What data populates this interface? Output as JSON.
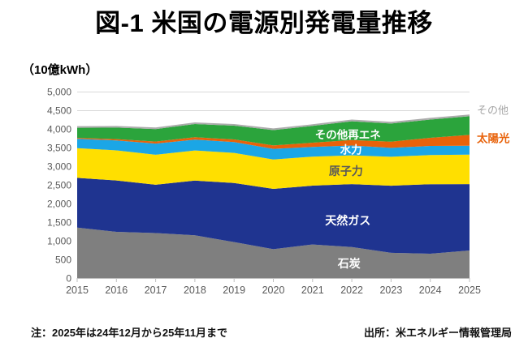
{
  "page": {
    "title": "図-1 米国の電源別発電量推移",
    "unit_label": "（10億kWh）",
    "note": "注：2025年は24年12月から25年11月まで",
    "source": "出所：米エネルギー情報管理局"
  },
  "chart_data": {
    "type": "area",
    "stacked": true,
    "title": "図-1 米国の電源別発電量推移",
    "ylabel": "（10億kWh）",
    "xlabel": "",
    "ylim": [
      0,
      5000
    ],
    "ytick_step": 500,
    "grid": true,
    "legend_position": "inside-area-labels",
    "axis_color": "#595959",
    "gridline_color": "#D9D9D9",
    "axisline_color": "#BFBFBF",
    "categories": [
      2015,
      2016,
      2017,
      2018,
      2019,
      2020,
      2021,
      2022,
      2023,
      2024,
      2025
    ],
    "series": [
      {
        "name": "coal",
        "label": "石炭",
        "color": "#7F7F7F",
        "label_color": "#FFFFFF",
        "values": [
          1352,
          1239,
          1206,
          1146,
          966,
          774,
          899,
          831,
          675,
          653,
          740
        ]
      },
      {
        "name": "natural-gas",
        "label": "天然ガス",
        "color": "#1F3490",
        "label_color": "#FFFFFF",
        "values": [
          1335,
          1378,
          1296,
          1468,
          1582,
          1617,
          1579,
          1689,
          1802,
          1865,
          1780
        ]
      },
      {
        "name": "nuclear",
        "label": "原子力",
        "color": "#FFDF00",
        "label_color": "#595959",
        "values": [
          797,
          806,
          805,
          807,
          809,
          790,
          778,
          772,
          775,
          782,
          790
        ]
      },
      {
        "name": "hydro",
        "label": "水力",
        "color": "#1BA6E6",
        "label_color": "#FFFFFF",
        "values": [
          249,
          268,
          300,
          292,
          288,
          285,
          260,
          262,
          240,
          243,
          240
        ]
      },
      {
        "name": "solar",
        "label": "太陽光",
        "color": "#E8620A",
        "label_color": "#E8620A",
        "values": [
          25,
          36,
          53,
          64,
          72,
          91,
          115,
          146,
          165,
          218,
          290
        ]
      },
      {
        "name": "other-renewables",
        "label": "その他再エネ",
        "color": "#2BA43C",
        "label_color": "#FFFFFF",
        "values": [
          272,
          307,
          333,
          353,
          369,
          411,
          449,
          504,
          487,
          489,
          500
        ]
      },
      {
        "name": "other",
        "label": "その他",
        "color": "#ABABAB",
        "label_color": "#A6A6A6",
        "values": [
          45,
          45,
          45,
          45,
          45,
          45,
          45,
          45,
          45,
          45,
          45
        ]
      }
    ]
  }
}
